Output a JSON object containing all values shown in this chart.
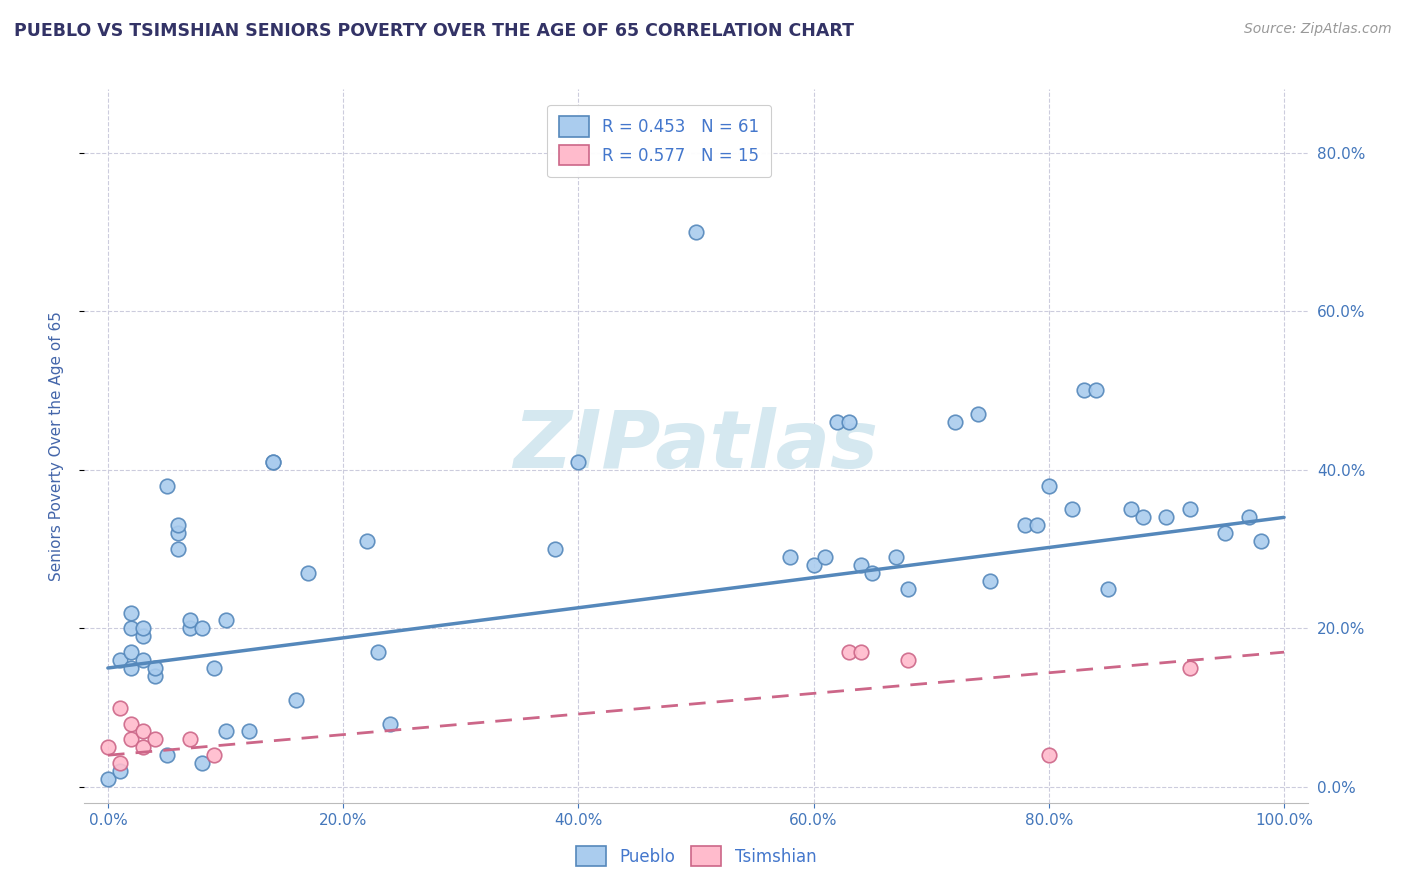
{
  "title": "PUEBLO VS TSIMSHIAN SENIORS POVERTY OVER THE AGE OF 65 CORRELATION CHART",
  "source": "Source: ZipAtlas.com",
  "ylabel": "Seniors Poverty Over the Age of 65",
  "xlim": [
    -2,
    102
  ],
  "ylim": [
    -2,
    88
  ],
  "xticks": [
    0,
    20,
    40,
    60,
    80,
    100
  ],
  "xtick_labels": [
    "0.0%",
    "20.0%",
    "40.0%",
    "60.0%",
    "80.0%",
    "100.0%"
  ],
  "yticks": [
    0,
    20,
    40,
    60,
    80
  ],
  "ytick_labels_right": [
    "0.0%",
    "20.0%",
    "40.0%",
    "60.0%",
    "80.0%"
  ],
  "pueblo_color": "#5588BB",
  "pueblo_face": "#AACCEE",
  "tsimshian_color": "#CC6688",
  "tsimshian_face": "#FFBBCC",
  "watermark": "ZIPatlas",
  "watermark_color": "#D5E8F0",
  "legend_r_pueblo": "0.453",
  "legend_n_pueblo": "61",
  "legend_r_tsimshian": "0.577",
  "legend_n_tsimshian": "15",
  "pueblo_x": [
    0,
    1,
    1,
    2,
    2,
    2,
    2,
    3,
    3,
    3,
    4,
    4,
    5,
    5,
    6,
    6,
    6,
    7,
    7,
    8,
    8,
    9,
    10,
    10,
    12,
    14,
    14,
    16,
    17,
    22,
    23,
    24,
    38,
    40,
    50,
    58,
    60,
    61,
    62,
    63,
    64,
    65,
    67,
    68,
    72,
    74,
    75,
    78,
    79,
    80,
    82,
    83,
    84,
    85,
    87,
    88,
    90,
    92,
    95,
    97,
    98
  ],
  "pueblo_y": [
    1,
    16,
    2,
    15,
    17,
    20,
    22,
    16,
    19,
    20,
    14,
    15,
    38,
    4,
    30,
    32,
    33,
    20,
    21,
    20,
    3,
    15,
    21,
    7,
    7,
    41,
    41,
    11,
    27,
    31,
    17,
    8,
    30,
    41,
    70,
    29,
    28,
    29,
    46,
    46,
    28,
    27,
    29,
    25,
    46,
    47,
    26,
    33,
    33,
    38,
    35,
    50,
    50,
    25,
    35,
    34,
    34,
    35,
    32,
    34,
    31
  ],
  "tsimshian_x": [
    0,
    1,
    1,
    2,
    2,
    3,
    3,
    4,
    7,
    9,
    63,
    64,
    68,
    80,
    92
  ],
  "tsimshian_y": [
    5,
    10,
    3,
    8,
    6,
    7,
    5,
    6,
    6,
    4,
    17,
    17,
    16,
    4,
    15
  ],
  "pueblo_trend_x": [
    0,
    100
  ],
  "pueblo_trend_y": [
    15,
    34
  ],
  "tsimshian_trend_x": [
    0,
    100
  ],
  "tsimshian_trend_y": [
    4,
    17
  ],
  "grid_color": "#CCCCDD",
  "title_color": "#333366",
  "axis_label_color": "#4466AA",
  "tick_color": "#4477BB",
  "background_color": "#FFFFFF",
  "plot_bg": "#FFFFFF",
  "legend_text_color": "#4477CC"
}
